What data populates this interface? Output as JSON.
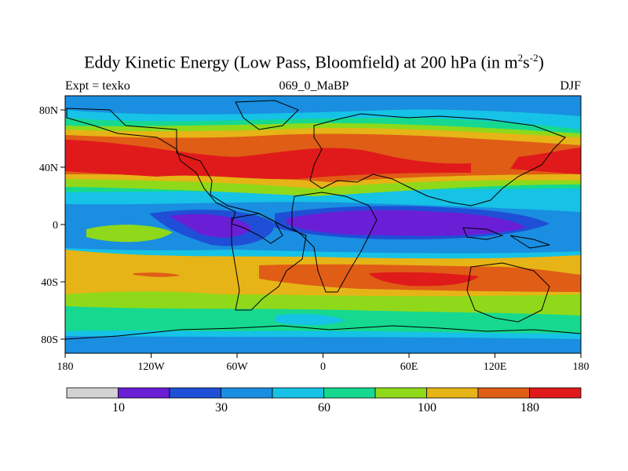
{
  "title": {
    "main": "Eddy Kinetic Energy (Low Pass, Bloomfield) at 200 hPa (in m",
    "sup1": "2",
    "mid": "s",
    "sup2": "-2",
    "close": ")"
  },
  "subtitle": {
    "left": "Expt = texko",
    "center": "069_0_MaBP",
    "right": "DJF"
  },
  "map": {
    "x_ticks": [
      "180",
      "120W",
      "60W",
      "0",
      "60E",
      "120E",
      "180"
    ],
    "y_ticks": [
      "80N",
      "40N",
      "0",
      "40S",
      "80S"
    ]
  },
  "colorbar": {
    "colors": [
      "#d2d2d2",
      "#6a1fd6",
      "#1f4fd6",
      "#1a8ee0",
      "#16c2e6",
      "#16d98f",
      "#8fd91a",
      "#e6b416",
      "#e05d16",
      "#e01a1a"
    ],
    "labels": [
      "10",
      "30",
      "60",
      "100",
      "180"
    ]
  }
}
